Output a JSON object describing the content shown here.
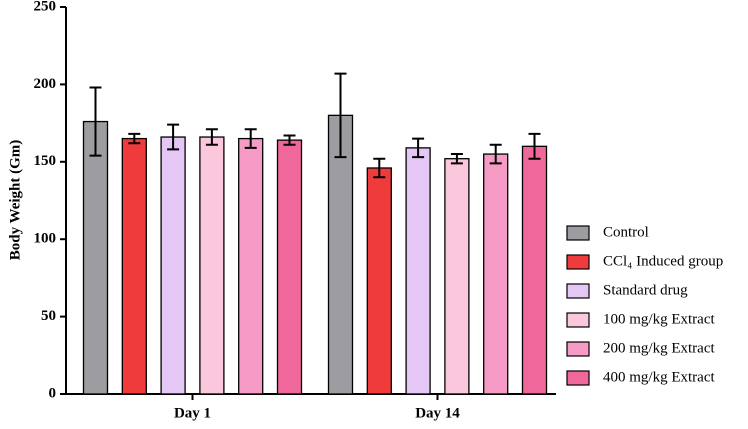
{
  "chart_data": {
    "type": "bar",
    "y_label": "Body Weight (Gm)",
    "categories": [
      "Day 1",
      "Day 14"
    ],
    "series": [
      {
        "name": "Control",
        "color": "#9d9da1",
        "values": [
          176,
          180
        ],
        "errors": [
          22,
          27
        ]
      },
      {
        "name": "CCl₄ Induced group",
        "color": "#f03b3d",
        "values": [
          165,
          146
        ],
        "errors": [
          3,
          6
        ]
      },
      {
        "name": "Standard drug",
        "color": "#e5c7f5",
        "values": [
          166,
          159
        ],
        "errors": [
          8,
          6
        ]
      },
      {
        "name": "100 mg/kg Extract",
        "color": "#fbc7dd",
        "values": [
          166,
          152
        ],
        "errors": [
          5,
          3
        ]
      },
      {
        "name": "200 mg/kg Extract",
        "color": "#f59bc6",
        "values": [
          165,
          155
        ],
        "errors": [
          6,
          6
        ]
      },
      {
        "name": "400 mg/kg Extract",
        "color": "#f0679b",
        "values": [
          164,
          160
        ],
        "errors": [
          3,
          8
        ]
      }
    ],
    "ylim": [
      0,
      250
    ],
    "yticks": [
      0,
      50,
      100,
      150,
      200,
      250
    ],
    "grid": false,
    "legend": "right"
  }
}
